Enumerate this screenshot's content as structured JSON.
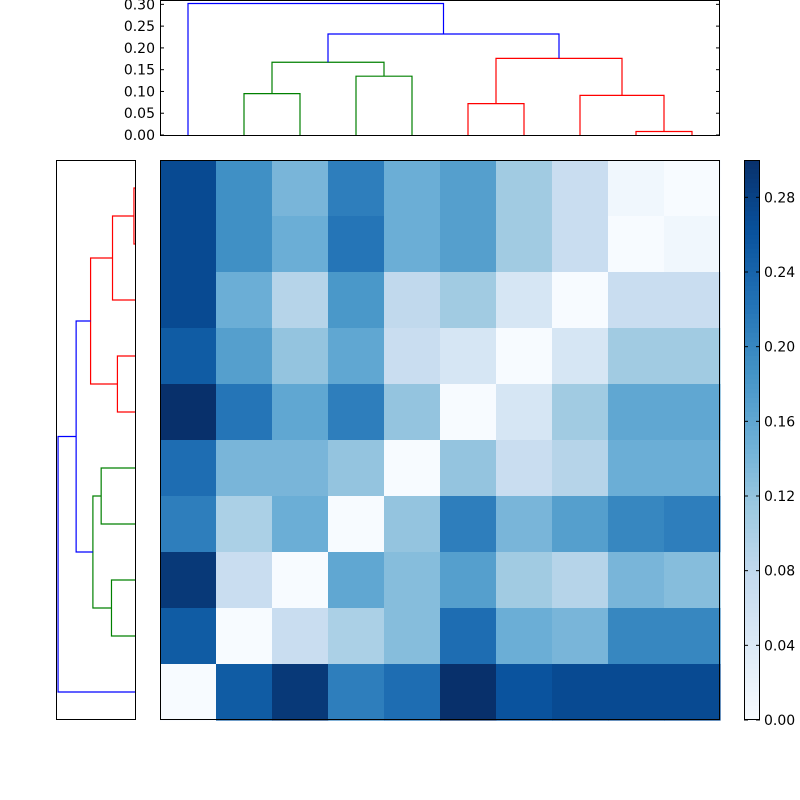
{
  "chart_data": [
    {
      "type": "dendrogram",
      "orientation": "top",
      "ylim": [
        0,
        0.31
      ],
      "yticks": [
        0.0,
        0.05,
        0.1,
        0.15,
        0.2,
        0.25,
        0.3
      ],
      "ytick_labels": [
        "0.00",
        "0.05",
        "0.10",
        "0.15",
        "0.20",
        "0.25",
        "0.30"
      ],
      "leaf_count": 10,
      "links": [
        {
          "left": 1.5,
          "right": 2.5,
          "left_h": 0.0,
          "right_h": 0.0,
          "height": 0.095,
          "color": "#008000"
        },
        {
          "left": 3.5,
          "right": 4.5,
          "left_h": 0.0,
          "right_h": 0.0,
          "height": 0.135,
          "color": "#008000"
        },
        {
          "left": 2.0,
          "right": 4.0,
          "left_h": 0.095,
          "right_h": 0.135,
          "height": 0.167,
          "color": "#008000"
        },
        {
          "left": 5.5,
          "right": 6.5,
          "left_h": 0.0,
          "right_h": 0.0,
          "height": 0.072,
          "color": "#ff0000"
        },
        {
          "left": 8.5,
          "right": 9.5,
          "left_h": 0.0,
          "right_h": 0.0,
          "height": 0.008,
          "color": "#ff0000"
        },
        {
          "left": 7.5,
          "right": 9.0,
          "left_h": 0.0,
          "right_h": 0.008,
          "height": 0.091,
          "color": "#ff0000"
        },
        {
          "left": 6.0,
          "right": 8.25,
          "left_h": 0.072,
          "right_h": 0.091,
          "height": 0.176,
          "color": "#ff0000"
        },
        {
          "left": 3.0,
          "right": 7.125,
          "left_h": 0.167,
          "right_h": 0.176,
          "height": 0.232,
          "color": "#0000ff"
        },
        {
          "left": 0.5,
          "right": 5.0625,
          "left_h": 0.0,
          "right_h": 0.232,
          "height": 0.302,
          "color": "#0000ff"
        }
      ]
    },
    {
      "type": "dendrogram",
      "orientation": "left",
      "xlim": [
        0,
        0.31
      ],
      "leaf_count": 10,
      "links": [
        {
          "top": 0.5,
          "bottom": 1.5,
          "top_h": 0.0,
          "bottom_h": 0.0,
          "height": 0.008,
          "color": "#ff0000"
        },
        {
          "top": 1.0,
          "bottom": 2.5,
          "top_h": 0.008,
          "bottom_h": 0.0,
          "height": 0.091,
          "color": "#ff0000"
        },
        {
          "top": 3.5,
          "bottom": 4.5,
          "top_h": 0.0,
          "bottom_h": 0.0,
          "height": 0.072,
          "color": "#ff0000"
        },
        {
          "top": 1.75,
          "bottom": 4.0,
          "top_h": 0.091,
          "bottom_h": 0.072,
          "height": 0.176,
          "color": "#ff0000"
        },
        {
          "top": 5.5,
          "bottom": 6.5,
          "top_h": 0.0,
          "bottom_h": 0.0,
          "height": 0.135,
          "color": "#008000"
        },
        {
          "top": 7.5,
          "bottom": 8.5,
          "top_h": 0.0,
          "bottom_h": 0.0,
          "height": 0.095,
          "color": "#008000"
        },
        {
          "top": 6.0,
          "bottom": 8.0,
          "top_h": 0.135,
          "bottom_h": 0.095,
          "height": 0.167,
          "color": "#008000"
        },
        {
          "top": 2.875,
          "bottom": 7.0,
          "top_h": 0.176,
          "bottom_h": 0.167,
          "height": 0.232,
          "color": "#0000ff"
        },
        {
          "top": 4.9375,
          "bottom": 9.5,
          "top_h": 0.232,
          "bottom_h": 0.0,
          "height": 0.302,
          "color": "#0000ff"
        }
      ]
    },
    {
      "type": "heatmap",
      "colormap": "Blues",
      "vmin": 0.0,
      "vmax": 0.3,
      "rows": 10,
      "cols": 10,
      "matrix": [
        [
          0.27,
          0.19,
          0.14,
          0.21,
          0.15,
          0.17,
          0.11,
          0.07,
          0.01,
          0.0
        ],
        [
          0.27,
          0.19,
          0.15,
          0.22,
          0.15,
          0.17,
          0.11,
          0.07,
          0.0,
          0.01
        ],
        [
          0.27,
          0.15,
          0.09,
          0.18,
          0.08,
          0.11,
          0.05,
          0.0,
          0.07,
          0.07
        ],
        [
          0.25,
          0.17,
          0.12,
          0.16,
          0.07,
          0.05,
          0.0,
          0.05,
          0.11,
          0.11
        ],
        [
          0.3,
          0.22,
          0.16,
          0.21,
          0.12,
          0.0,
          0.05,
          0.11,
          0.16,
          0.16
        ],
        [
          0.23,
          0.14,
          0.14,
          0.12,
          0.0,
          0.12,
          0.07,
          0.09,
          0.15,
          0.15
        ],
        [
          0.21,
          0.1,
          0.15,
          0.0,
          0.12,
          0.21,
          0.14,
          0.17,
          0.2,
          0.21
        ],
        [
          0.29,
          0.07,
          0.0,
          0.16,
          0.13,
          0.17,
          0.11,
          0.09,
          0.14,
          0.13
        ],
        [
          0.25,
          0.0,
          0.07,
          0.1,
          0.13,
          0.23,
          0.15,
          0.14,
          0.2,
          0.2
        ],
        [
          0.0,
          0.25,
          0.29,
          0.21,
          0.23,
          0.3,
          0.26,
          0.27,
          0.27,
          0.27
        ]
      ]
    },
    {
      "type": "colorbar",
      "ticks": [
        0.0,
        0.04,
        0.08,
        0.12,
        0.16,
        0.2,
        0.24,
        0.28
      ],
      "tick_labels": [
        "0.00",
        "0.04",
        "0.08",
        "0.12",
        "0.16",
        "0.20",
        "0.24",
        "0.28"
      ],
      "vmin": 0.0,
      "vmax": 0.3
    }
  ]
}
